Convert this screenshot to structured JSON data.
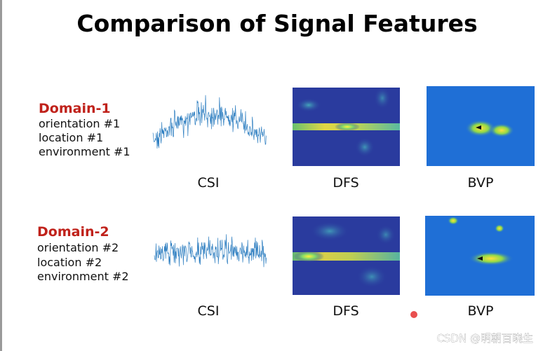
{
  "title": "Comparison of Signal Features",
  "rows": [
    {
      "domain": "Domain-1",
      "details": [
        "orientation #1",
        "location #1",
        "environment #1"
      ],
      "captions": [
        "CSI",
        "DFS",
        "BVP"
      ]
    },
    {
      "domain": "Domain-2",
      "details": [
        "orientation #2",
        "location #2",
        "environment #2"
      ],
      "captions": [
        "CSI",
        "DFS",
        "BVP"
      ]
    }
  ],
  "watermark": "CSDN @明朝百晓生"
}
